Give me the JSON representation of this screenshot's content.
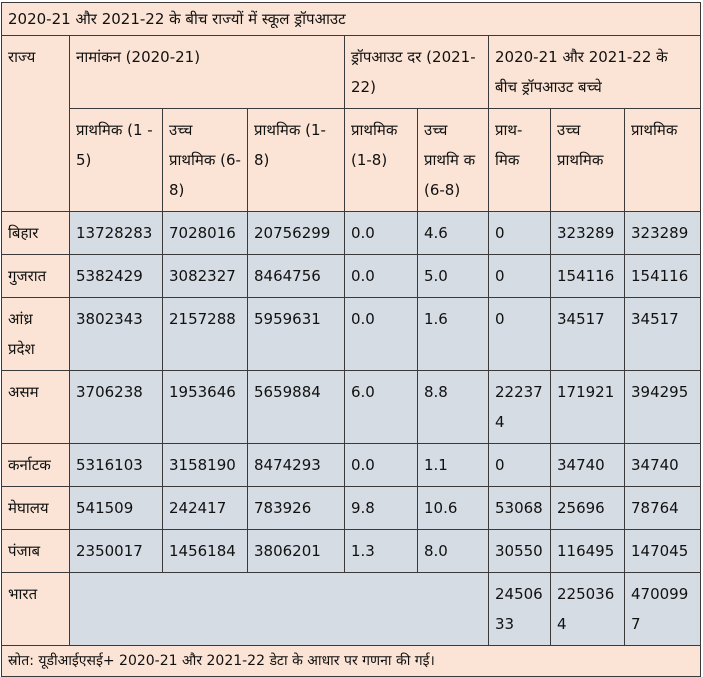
{
  "title": "2020-21 और 2021-22 के बीच राज्यों में स्कूल ड्रॉपआउट",
  "headers": {
    "state": "राज्य",
    "enrolment": "नामांकन (2020-21)",
    "dropout_rate": "ड्रॉपआउट दर (2021-22)",
    "dropout_children": "2020-21 और 2021-22 के बीच ड्रॉपआउट बच्चे",
    "sub": {
      "enr_primary": "प्राथमिक (1 - 5)",
      "enr_upper": "उच्च प्राथमिक (6- 8)",
      "enr_total": "प्राथमिक (1-8)",
      "rate_primary": "प्राथमिक (1-8)",
      "rate_upper": "उच्च प्राथमि क (6-8)",
      "ch_primary": "प्राथ- मिक",
      "ch_upper": "उच्च प्राथमिक",
      "ch_total": "प्राथमिक"
    }
  },
  "rows": [
    {
      "state": "बिहार",
      "c1": "13728283",
      "c2": "7028016",
      "c3": "20756299",
      "c4": "0.0",
      "c5": "4.6",
      "c6": "0",
      "c7": "323289",
      "c8": "323289"
    },
    {
      "state": "गुजरात",
      "c1": "5382429",
      "c2": "3082327",
      "c3": "8464756",
      "c4": "0.0",
      "c5": "5.0",
      "c6": "0",
      "c7": "154116",
      "c8": "154116"
    },
    {
      "state": "आंध्र प्रदेश",
      "c1": "3802343",
      "c2": "2157288",
      "c3": "5959631",
      "c4": "0.0",
      "c5": "1.6",
      "c6": "0",
      "c7": "34517",
      "c8": "34517"
    },
    {
      "state": "असम",
      "c1": "3706238",
      "c2": "1953646",
      "c3": "5659884",
      "c4": "6.0",
      "c5": "8.8",
      "c6": "222374",
      "c7": "171921",
      "c8": "394295"
    },
    {
      "state": "कर्नाटक",
      "c1": "5316103",
      "c2": "3158190",
      "c3": "8474293",
      "c4": "0.0",
      "c5": "1.1",
      "c6": "0",
      "c7": "34740",
      "c8": "34740"
    },
    {
      "state": "मेघालय",
      "c1": "541509",
      "c2": "242417",
      "c3": "783926",
      "c4": "9.8",
      "c5": "10.6",
      "c6": "53068",
      "c7": "25696",
      "c8": "78764"
    },
    {
      "state": "पंजाब",
      "c1": "2350017",
      "c2": "1456184",
      "c3": "3806201",
      "c4": "1.3",
      "c5": "8.0",
      "c6": "30550",
      "c7": "116495",
      "c8": "147045"
    }
  ],
  "total": {
    "state": "भारत",
    "c6": "2450633",
    "c7": "2250364",
    "c8": "4700997"
  },
  "source": "स्रोत: यूडीआईएसई+ 2020-21 और 2021-22 डेटा के आधार पर गणना की गई।"
}
